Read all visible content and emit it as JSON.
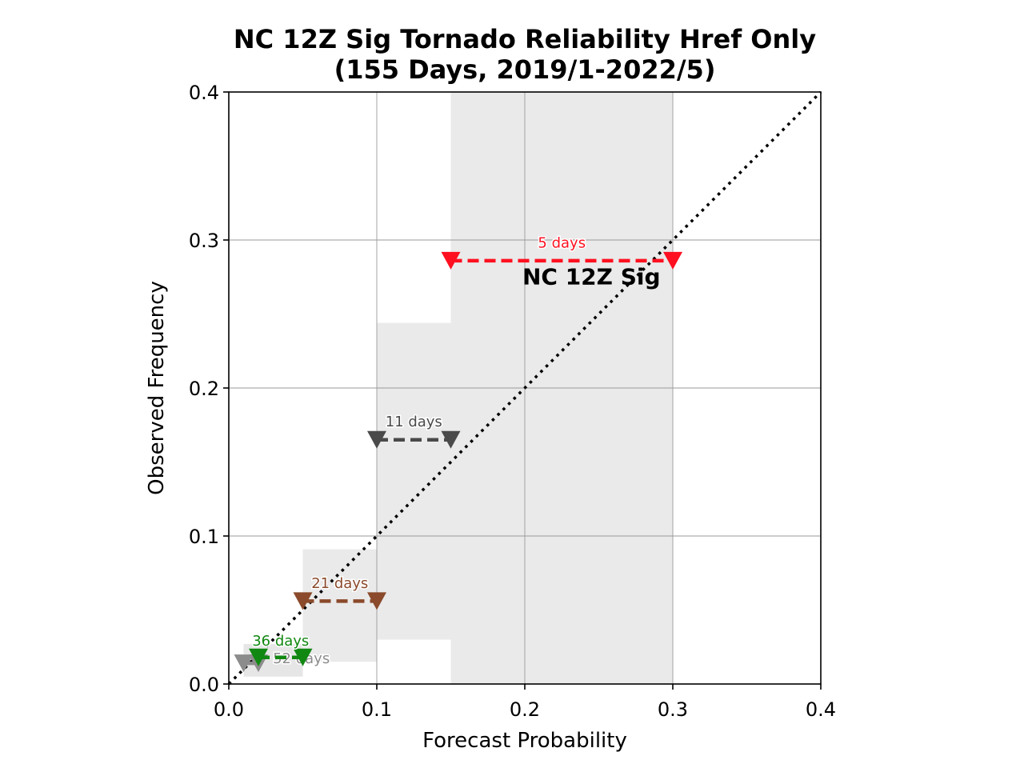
{
  "chart_data": {
    "type": "scatter",
    "title_line1": "NC 12Z Sig Tornado Reliability Href Only",
    "title_line2": "(155 Days, 2019/1-2022/5)",
    "xlabel": "Forecast Probability",
    "ylabel": "Observed Frequency",
    "xlim": [
      0,
      0.4
    ],
    "ylim": [
      0,
      0.4
    ],
    "xticks": [
      0.0,
      0.1,
      0.2,
      0.3,
      0.4
    ],
    "yticks": [
      0.0,
      0.1,
      0.2,
      0.3,
      0.4
    ],
    "xtick_labels": [
      "0.0",
      "0.1",
      "0.2",
      "0.3",
      "0.4"
    ],
    "ytick_labels": [
      "0.0",
      "0.1",
      "0.2",
      "0.3",
      "0.4"
    ],
    "grid": true,
    "diagonal": {
      "from": [
        0,
        0
      ],
      "to": [
        0.4,
        0.4
      ],
      "style": "dotted",
      "color": "#000000"
    },
    "annotation": {
      "text": "NC 12Z Sig",
      "x": 0.245,
      "y": 0.27
    },
    "bands": [
      {
        "x0": 0.01,
        "x1": 0.05,
        "y0": 0.005,
        "y1": 0.027,
        "color": "#e6e6e6"
      },
      {
        "x0": 0.05,
        "x1": 0.1,
        "y0": 0.015,
        "y1": 0.091,
        "color": "#eaeaea"
      },
      {
        "x0": 0.1,
        "x1": 0.15,
        "y0": 0.03,
        "y1": 0.244,
        "color": "#eaeaea"
      },
      {
        "x0": 0.15,
        "x1": 0.3,
        "y0": 0.0,
        "y1": 0.4,
        "color": "#eaeaea"
      }
    ],
    "bins": [
      {
        "label": "52 days",
        "x0": 0.01,
        "x1": 0.02,
        "y": 0.014,
        "color": "#8c8c8c",
        "label_x": 0.049,
        "label_y": 0.014
      },
      {
        "label": "36 days",
        "x0": 0.02,
        "x1": 0.05,
        "y": 0.018,
        "color": "#118811",
        "label_x": 0.035,
        "label_y": 0.026
      },
      {
        "label": "21 days",
        "x0": 0.05,
        "x1": 0.1,
        "y": 0.056,
        "color": "#8b4a2b",
        "label_x": 0.075,
        "label_y": 0.065
      },
      {
        "label": "11 days",
        "x0": 0.1,
        "x1": 0.15,
        "y": 0.165,
        "color": "#4a4a4a",
        "label_x": 0.125,
        "label_y": 0.174
      },
      {
        "label": "5 days",
        "x0": 0.15,
        "x1": 0.3,
        "y": 0.286,
        "color": "#ff1020",
        "label_x": 0.225,
        "label_y": 0.295
      }
    ]
  }
}
